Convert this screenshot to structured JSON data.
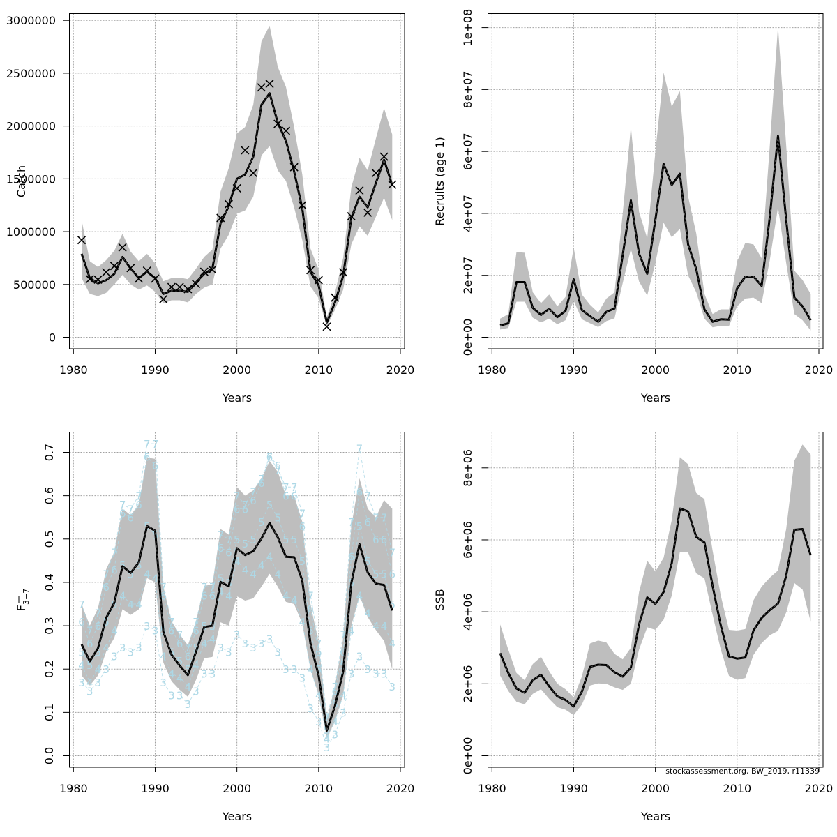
{
  "credit": "stockassessment.org, BW_2019, r11339",
  "chart_data": [
    {
      "id": "catch",
      "type": "line",
      "title": "",
      "xlabel": "Years",
      "ylabel": "Catch",
      "xlim": [
        1980,
        2020
      ],
      "ylim": [
        0,
        3000000
      ],
      "xticks": [
        1980,
        1990,
        2000,
        2010,
        2020
      ],
      "yticks": [
        0,
        500000,
        1000000,
        1500000,
        2000000,
        2500000,
        3000000
      ],
      "ytick_labels": [
        "0",
        "500000",
        "1000000",
        "1500000",
        "2000000",
        "2500000",
        "3000000"
      ],
      "ytick_rotated": false,
      "grid": true,
      "x": [
        1981,
        1982,
        1983,
        1984,
        1985,
        1986,
        1987,
        1988,
        1989,
        1990,
        1991,
        1992,
        1993,
        1994,
        1995,
        1996,
        1997,
        1998,
        1999,
        2000,
        2001,
        2002,
        2003,
        2004,
        2005,
        2006,
        2007,
        2008,
        2009,
        2010,
        2011,
        2012,
        2013,
        2014,
        2015,
        2016,
        2017,
        2018,
        2019
      ],
      "estimate": [
        790000,
        560000,
        510000,
        540000,
        600000,
        760000,
        650000,
        560000,
        620000,
        560000,
        410000,
        440000,
        440000,
        430000,
        520000,
        600000,
        650000,
        1080000,
        1240000,
        1500000,
        1540000,
        1710000,
        2200000,
        2310000,
        2030000,
        1860000,
        1570000,
        1220000,
        620000,
        490000,
        140000,
        330000,
        580000,
        1130000,
        1330000,
        1230000,
        1460000,
        1680000,
        1440000
      ],
      "upper": [
        1110000,
        720000,
        665000,
        730000,
        820000,
        980000,
        810000,
        720000,
        790000,
        700000,
        530000,
        560000,
        565000,
        550000,
        650000,
        760000,
        830000,
        1380000,
        1600000,
        1930000,
        1990000,
        2200000,
        2800000,
        2950000,
        2560000,
        2370000,
        1990000,
        1540000,
        840000,
        640000,
        190000,
        420000,
        750000,
        1420000,
        1700000,
        1580000,
        1880000,
        2170000,
        1920000
      ],
      "lower": [
        560000,
        410000,
        390000,
        420000,
        500000,
        590000,
        500000,
        450000,
        490000,
        430000,
        320000,
        350000,
        350000,
        330000,
        410000,
        470000,
        500000,
        840000,
        970000,
        1170000,
        1200000,
        1330000,
        1720000,
        1810000,
        1580000,
        1480000,
        1230000,
        920000,
        480000,
        370000,
        100000,
        260000,
        450000,
        880000,
        1050000,
        960000,
        1140000,
        1320000,
        1110000
      ],
      "observed": [
        920000,
        550000,
        545000,
        615000,
        675000,
        850000,
        655000,
        555000,
        630000,
        555000,
        360000,
        475000,
        475000,
        455000,
        505000,
        620000,
        640000,
        1130000,
        1260000,
        1410000,
        1770000,
        1555000,
        2365000,
        2400000,
        2020000,
        1955000,
        1610000,
        1250000,
        635000,
        540000,
        100000,
        375000,
        615000,
        1145000,
        1390000,
        1180000,
        1555000,
        1710000,
        1445000
      ],
      "observed_marker": "x"
    },
    {
      "id": "recruits",
      "type": "line",
      "title": "",
      "xlabel": "Years",
      "ylabel": "Recruits (age 1)",
      "xlim": [
        1980,
        2020
      ],
      "ylim": [
        0,
        100000000
      ],
      "xticks": [
        1980,
        1990,
        2000,
        2010,
        2020
      ],
      "yticks": [
        0,
        20000000,
        40000000,
        60000000,
        80000000,
        100000000
      ],
      "ytick_labels": [
        "0e+00",
        "2e+07",
        "4e+07",
        "6e+07",
        "8e+07",
        "1e+08"
      ],
      "ytick_rotated": true,
      "grid": true,
      "x": [
        1981,
        1982,
        1983,
        1984,
        1985,
        1986,
        1987,
        1988,
        1989,
        1990,
        1991,
        1992,
        1993,
        1994,
        1995,
        1996,
        1997,
        1998,
        1999,
        2000,
        2001,
        2002,
        2003,
        2004,
        2005,
        2006,
        2007,
        2008,
        2009,
        2010,
        2011,
        2012,
        2013,
        2014,
        2015,
        2016,
        2017,
        2018,
        2019
      ],
      "estimate": [
        3800000,
        4500000,
        17800000,
        17800000,
        9500000,
        7200000,
        9200000,
        6500000,
        8500000,
        18700000,
        8800000,
        6800000,
        5000000,
        8200000,
        9300000,
        26500000,
        44200000,
        27000000,
        20500000,
        38000000,
        56000000,
        49200000,
        52800000,
        30000000,
        22000000,
        9000000,
        5000000,
        5800000,
        5700000,
        15800000,
        19600000,
        19600000,
        16600000,
        39000000,
        65000000,
        38000000,
        12800000,
        10000000,
        5500000
      ],
      "upper": [
        6000000,
        7500000,
        27500000,
        27300000,
        14500000,
        11000000,
        13800000,
        10000000,
        13000000,
        29000000,
        13800000,
        10500000,
        8000000,
        12500000,
        14500000,
        40000000,
        68000000,
        40500000,
        32000000,
        60000000,
        85500000,
        74500000,
        79500000,
        45500000,
        33500000,
        14000000,
        7500000,
        9000000,
        9000000,
        24500000,
        30500000,
        30000000,
        25500000,
        62000000,
        100500000,
        62000000,
        21500000,
        18500000,
        14000000
      ],
      "lower": [
        2500000,
        3000000,
        11500000,
        11500000,
        6300000,
        4800000,
        6000000,
        4200000,
        5500000,
        11800000,
        5800000,
        4500000,
        3300000,
        5200000,
        6100000,
        17500000,
        28500000,
        18000000,
        13500000,
        24000000,
        37000000,
        32300000,
        35000000,
        20000000,
        14500000,
        6000000,
        3200000,
        3700000,
        3600000,
        10000000,
        12500000,
        12800000,
        11000000,
        25000000,
        42000000,
        24000000,
        7500000,
        5500000,
        2200000
      ]
    },
    {
      "id": "fbar",
      "type": "line",
      "title": "",
      "xlabel": "Years",
      "ylabel": "F̄",
      "ylabel_subscript": "3−7",
      "xlim": [
        1980,
        2020
      ],
      "ylim": [
        0,
        0.7
      ],
      "xticks": [
        1980,
        1990,
        2000,
        2010,
        2020
      ],
      "yticks": [
        0,
        0.1,
        0.2,
        0.3,
        0.4,
        0.5,
        0.6,
        0.7
      ],
      "ytick_labels": [
        "0.0",
        "0.1",
        "0.2",
        "0.3",
        "0.4",
        "0.5",
        "0.6",
        "0.7"
      ],
      "ytick_rotated": true,
      "grid": true,
      "x": [
        1981,
        1982,
        1983,
        1984,
        1985,
        1986,
        1987,
        1988,
        1989,
        1990,
        1991,
        1992,
        1993,
        1994,
        1995,
        1996,
        1997,
        1998,
        1999,
        2000,
        2001,
        2002,
        2003,
        2004,
        2005,
        2006,
        2007,
        2008,
        2009,
        2010,
        2011,
        2012,
        2013,
        2014,
        2015,
        2016,
        2017,
        2018,
        2019
      ],
      "estimate": [
        0.257,
        0.218,
        0.248,
        0.318,
        0.353,
        0.437,
        0.422,
        0.446,
        0.53,
        0.519,
        0.286,
        0.233,
        0.208,
        0.186,
        0.24,
        0.297,
        0.3,
        0.401,
        0.391,
        0.479,
        0.463,
        0.472,
        0.501,
        0.537,
        0.504,
        0.459,
        0.458,
        0.404,
        0.259,
        0.185,
        0.058,
        0.115,
        0.194,
        0.398,
        0.488,
        0.423,
        0.397,
        0.394,
        0.335
      ],
      "upper": [
        0.35,
        0.3,
        0.34,
        0.43,
        0.47,
        0.57,
        0.555,
        0.58,
        0.688,
        0.685,
        0.39,
        0.31,
        0.28,
        0.255,
        0.31,
        0.392,
        0.395,
        0.523,
        0.51,
        0.62,
        0.6,
        0.612,
        0.64,
        0.68,
        0.655,
        0.6,
        0.6,
        0.54,
        0.35,
        0.26,
        0.085,
        0.16,
        0.27,
        0.53,
        0.64,
        0.57,
        0.55,
        0.59,
        0.57
      ],
      "lower": [
        0.185,
        0.162,
        0.185,
        0.24,
        0.272,
        0.338,
        0.325,
        0.338,
        0.41,
        0.4,
        0.215,
        0.172,
        0.152,
        0.136,
        0.175,
        0.225,
        0.228,
        0.308,
        0.3,
        0.368,
        0.358,
        0.363,
        0.39,
        0.42,
        0.39,
        0.355,
        0.35,
        0.305,
        0.2,
        0.14,
        0.04,
        0.08,
        0.14,
        0.3,
        0.37,
        0.32,
        0.29,
        0.265,
        0.2
      ],
      "age_series_color": "#add8e6",
      "age_series": [
        {
          "name": "3",
          "values": [
            0.17,
            0.15,
            0.17,
            0.2,
            0.23,
            0.25,
            0.24,
            0.25,
            0.3,
            0.29,
            0.17,
            0.14,
            0.14,
            0.12,
            0.15,
            0.19,
            0.19,
            0.25,
            0.24,
            0.28,
            0.26,
            0.25,
            0.26,
            0.27,
            0.24,
            0.2,
            0.2,
            0.18,
            0.11,
            0.08,
            0.02,
            0.05,
            0.1,
            0.19,
            0.23,
            0.2,
            0.19,
            0.19,
            0.16
          ]
        },
        {
          "name": "4",
          "values": [
            0.21,
            0.17,
            0.2,
            0.25,
            0.29,
            0.37,
            0.35,
            0.35,
            0.42,
            0.41,
            0.23,
            0.19,
            0.18,
            0.16,
            0.21,
            0.26,
            0.27,
            0.38,
            0.37,
            0.45,
            0.43,
            0.42,
            0.44,
            0.46,
            0.42,
            0.37,
            0.36,
            0.31,
            0.2,
            0.14,
            0.04,
            0.08,
            0.14,
            0.29,
            0.37,
            0.33,
            0.3,
            0.3,
            0.26
          ]
        },
        {
          "name": "5",
          "values": [
            0.24,
            0.21,
            0.24,
            0.31,
            0.35,
            0.44,
            0.42,
            0.44,
            0.53,
            0.51,
            0.29,
            0.24,
            0.22,
            0.2,
            0.25,
            0.3,
            0.3,
            0.41,
            0.4,
            0.5,
            0.49,
            0.5,
            0.54,
            0.58,
            0.55,
            0.5,
            0.5,
            0.45,
            0.29,
            0.2,
            0.06,
            0.12,
            0.21,
            0.4,
            0.53,
            0.45,
            0.42,
            0.42,
            0.35
          ]
        },
        {
          "name": "6",
          "values": [
            0.31,
            0.26,
            0.3,
            0.39,
            0.43,
            0.56,
            0.55,
            0.58,
            0.69,
            0.67,
            0.37,
            0.29,
            0.26,
            0.23,
            0.29,
            0.37,
            0.37,
            0.48,
            0.47,
            0.57,
            0.57,
            0.59,
            0.63,
            0.69,
            0.67,
            0.6,
            0.6,
            0.53,
            0.34,
            0.24,
            0.08,
            0.15,
            0.24,
            0.46,
            0.61,
            0.54,
            0.5,
            0.5,
            0.42
          ]
        },
        {
          "name": "7",
          "values": [
            0.35,
            0.29,
            0.33,
            0.42,
            0.47,
            0.58,
            0.57,
            0.6,
            0.72,
            0.72,
            0.39,
            0.31,
            0.28,
            0.25,
            0.31,
            0.39,
            0.39,
            0.51,
            0.5,
            0.6,
            0.58,
            0.61,
            0.64,
            0.69,
            0.66,
            0.62,
            0.62,
            0.56,
            0.37,
            0.26,
            0.09,
            0.16,
            0.28,
            0.54,
            0.71,
            0.6,
            0.55,
            0.55,
            0.47
          ]
        }
      ]
    },
    {
      "id": "ssb",
      "type": "line",
      "title": "",
      "xlabel": "Years",
      "ylabel": "SSB",
      "xlim": [
        1980,
        2020
      ],
      "ylim": [
        0,
        8000000
      ],
      "xticks": [
        1980,
        1990,
        2000,
        2010,
        2020
      ],
      "yticks": [
        0,
        2000000,
        4000000,
        6000000,
        8000000
      ],
      "ytick_labels": [
        "0e+00",
        "2e+06",
        "4e+06",
        "6e+06",
        "8e+06"
      ],
      "ytick_rotated": true,
      "grid": true,
      "x": [
        1981,
        1982,
        1983,
        1984,
        1985,
        1986,
        1987,
        1988,
        1989,
        1990,
        1991,
        1992,
        1993,
        1994,
        1995,
        1996,
        1997,
        1998,
        1999,
        2000,
        2001,
        2002,
        2003,
        2004,
        2005,
        2006,
        2007,
        2008,
        2009,
        2010,
        2011,
        2012,
        2013,
        2014,
        2015,
        2016,
        2017,
        2018,
        2019
      ],
      "estimate": [
        2850000,
        2300000,
        1870000,
        1750000,
        2100000,
        2250000,
        1930000,
        1650000,
        1550000,
        1370000,
        1780000,
        2470000,
        2530000,
        2520000,
        2320000,
        2200000,
        2450000,
        3650000,
        4400000,
        4220000,
        4550000,
        5350000,
        6870000,
        6790000,
        6080000,
        5930000,
        4720000,
        3620000,
        2760000,
        2700000,
        2730000,
        3480000,
        3830000,
        4050000,
        4230000,
        5000000,
        6280000,
        6300000,
        5570000
      ],
      "upper": [
        3650000,
        2950000,
        2300000,
        2100000,
        2550000,
        2750000,
        2350000,
        2000000,
        1850000,
        1620000,
        2200000,
        3120000,
        3200000,
        3150000,
        2830000,
        2680000,
        3000000,
        4550000,
        5420000,
        5120000,
        5500000,
        6550000,
        8300000,
        8100000,
        7300000,
        7130000,
        5700000,
        4450000,
        3500000,
        3480000,
        3520000,
        4320000,
        4700000,
        4950000,
        5150000,
        6300000,
        8200000,
        8650000,
        8370000
      ],
      "lower": [
        2230000,
        1800000,
        1500000,
        1430000,
        1720000,
        1850000,
        1580000,
        1350000,
        1280000,
        1130000,
        1420000,
        1950000,
        2010000,
        2000000,
        1900000,
        1830000,
        2000000,
        2950000,
        3570000,
        3500000,
        3780000,
        4450000,
        5670000,
        5650000,
        5070000,
        4930000,
        3920000,
        2950000,
        2220000,
        2110000,
        2160000,
        2800000,
        3130000,
        3350000,
        3470000,
        3980000,
        4800000,
        4620000,
        3720000
      ]
    }
  ]
}
